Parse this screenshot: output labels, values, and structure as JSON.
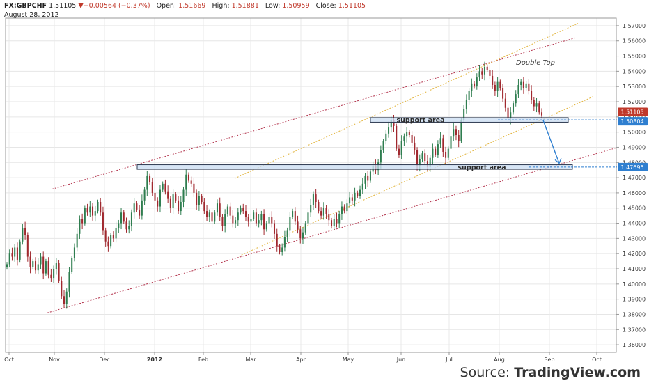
{
  "header": {
    "symbol": "FX:GBPCHF",
    "last": "1.51105",
    "change": "−0.00564 (−0.37%)",
    "open_label": "Open:",
    "open": "1.51669",
    "high_label": "High:",
    "high": "1.51881",
    "low_label": "Low:",
    "low": "1.50959",
    "close_label": "Close:",
    "close": "1.51105",
    "date": "August 28, 2012"
  },
  "source": {
    "prefix": "Source: ",
    "brand": "TradingView.com"
  },
  "colors": {
    "up": "#2e7d4f",
    "down": "#a0282e",
    "accent_line": "#2f7fd0",
    "channel": "#b3344d",
    "inner": "#e2b43c"
  },
  "chart_data": {
    "type": "candlestick",
    "ylim": [
      1.355,
      1.575
    ],
    "yticks": [
      "1.36000",
      "1.37000",
      "1.38000",
      "1.39000",
      "1.40000",
      "1.41000",
      "1.42000",
      "1.43000",
      "1.44000",
      "1.45000",
      "1.46000",
      "1.47000",
      "1.48000",
      "1.49000",
      "1.50000",
      "1.51000",
      "1.52000",
      "1.53000",
      "1.54000",
      "1.55000",
      "1.56000",
      "1.57000"
    ],
    "xticks": [
      "Oct",
      "Nov",
      "Dec",
      "2012",
      "Feb",
      "Mar",
      "Apr",
      "May",
      "Jun",
      "Jul",
      "Aug",
      "Sep",
      "Oct"
    ],
    "price_tags": [
      {
        "label": "1.51105",
        "value": 1.51105,
        "color": "#c0392b"
      },
      {
        "label": "1.50804",
        "value": 1.50804,
        "color": "#2f7fd0"
      },
      {
        "label": "1.47695",
        "value": 1.47695,
        "color": "#2f7fd0"
      }
    ],
    "annotations": [
      {
        "text": "support area",
        "value_low": 1.5065,
        "value_high": 1.5095
      },
      {
        "text": "support area",
        "value_low": 1.4755,
        "value_high": 1.4785
      },
      {
        "text": "Double Top"
      }
    ],
    "closes": [
      1.413,
      1.42,
      1.418,
      1.424,
      1.416,
      1.428,
      1.437,
      1.432,
      1.418,
      1.411,
      1.415,
      1.409,
      1.413,
      1.418,
      1.407,
      1.415,
      1.406,
      1.404,
      1.41,
      1.414,
      1.402,
      1.392,
      1.387,
      1.395,
      1.408,
      1.417,
      1.424,
      1.433,
      1.443,
      1.44,
      1.45,
      1.447,
      1.451,
      1.445,
      1.448,
      1.454,
      1.447,
      1.435,
      1.428,
      1.425,
      1.432,
      1.43,
      1.437,
      1.44,
      1.447,
      1.441,
      1.436,
      1.438,
      1.447,
      1.453,
      1.449,
      1.445,
      1.455,
      1.462,
      1.471,
      1.467,
      1.46,
      1.455,
      1.451,
      1.462,
      1.466,
      1.461,
      1.456,
      1.45,
      1.459,
      1.455,
      1.448,
      1.454,
      1.462,
      1.472,
      1.468,
      1.466,
      1.46,
      1.452,
      1.458,
      1.454,
      1.448,
      1.444,
      1.447,
      1.441,
      1.447,
      1.453,
      1.444,
      1.438,
      1.446,
      1.451,
      1.445,
      1.44,
      1.442,
      1.447,
      1.45,
      1.448,
      1.444,
      1.441,
      1.443,
      1.447,
      1.44,
      1.442,
      1.446,
      1.436,
      1.44,
      1.444,
      1.44,
      1.433,
      1.425,
      1.421,
      1.424,
      1.431,
      1.435,
      1.444,
      1.448,
      1.441,
      1.436,
      1.43,
      1.434,
      1.44,
      1.447,
      1.452,
      1.459,
      1.454,
      1.448,
      1.445,
      1.45,
      1.446,
      1.442,
      1.438,
      1.443,
      1.44,
      1.446,
      1.451,
      1.448,
      1.453,
      1.457,
      1.455,
      1.46,
      1.458,
      1.462,
      1.466,
      1.471,
      1.468,
      1.474,
      1.478,
      1.475,
      1.48,
      1.488,
      1.494,
      1.499,
      1.503,
      1.508,
      1.504,
      1.489,
      1.485,
      1.494,
      1.497,
      1.5,
      1.498,
      1.493,
      1.488,
      1.478,
      1.482,
      1.486,
      1.481,
      1.477,
      1.483,
      1.489,
      1.485,
      1.492,
      1.496,
      1.487,
      1.483,
      1.489,
      1.497,
      1.502,
      1.498,
      1.494,
      1.508,
      1.515,
      1.521,
      1.527,
      1.532,
      1.53,
      1.536,
      1.54,
      1.538,
      1.543,
      1.541,
      1.537,
      1.531,
      1.527,
      1.533,
      1.529,
      1.522,
      1.516,
      1.509,
      1.513,
      1.519,
      1.525,
      1.531,
      1.533,
      1.529,
      1.532,
      1.527,
      1.521,
      1.517,
      1.519,
      1.513,
      1.511
    ]
  }
}
